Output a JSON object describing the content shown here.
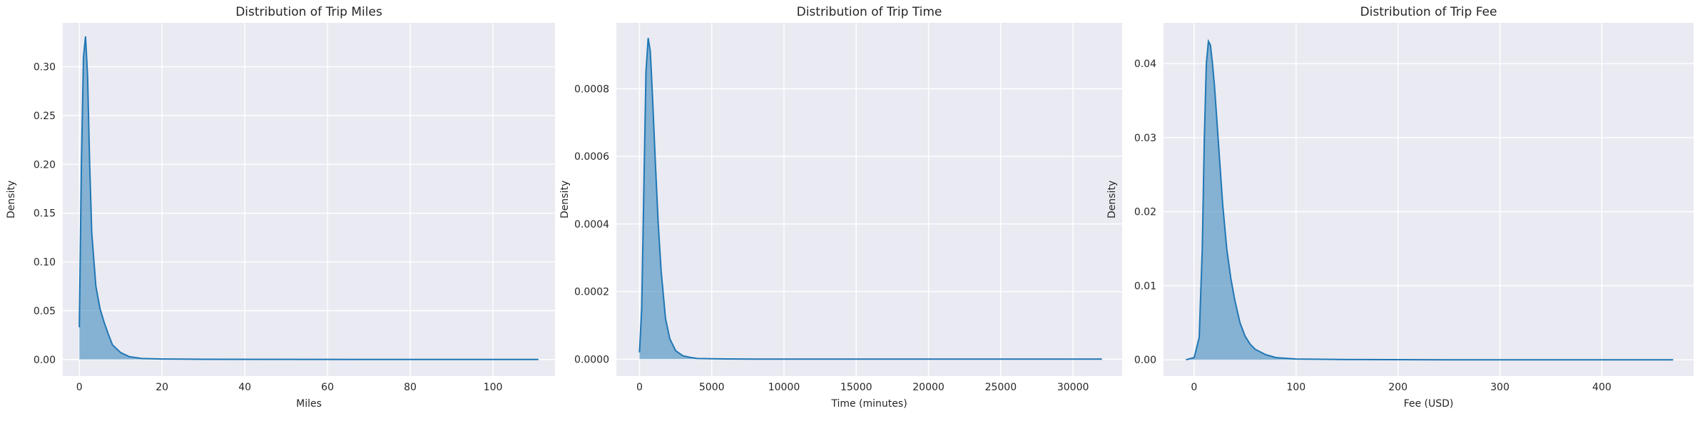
{
  "chart_data": [
    {
      "type": "area",
      "title": "Distribution of Trip Miles",
      "xlabel": "Miles",
      "ylabel": "Density",
      "xlim": [
        -4,
        115
      ],
      "ylim": [
        -0.017,
        0.345
      ],
      "xticks": [
        0,
        20,
        40,
        60,
        80,
        100
      ],
      "yticks": [
        0.0,
        0.05,
        0.1,
        0.15,
        0.2,
        0.25,
        0.3
      ],
      "ytick_labels": [
        "0.00",
        "0.05",
        "0.10",
        "0.15",
        "0.20",
        "0.25",
        "0.30"
      ],
      "xtick_labels": [
        "0",
        "20",
        "40",
        "60",
        "80",
        "100"
      ],
      "grid": true,
      "series": [
        {
          "x": [
            0,
            0.5,
            1,
            1.5,
            2,
            2.5,
            3,
            4,
            5,
            6,
            7,
            8,
            10,
            12,
            15,
            20,
            30,
            50,
            80,
            111
          ],
          "y": [
            0.033,
            0.2,
            0.31,
            0.331,
            0.29,
            0.2,
            0.13,
            0.075,
            0.052,
            0.038,
            0.026,
            0.015,
            0.007,
            0.003,
            0.001,
            0.0005,
            0.0002,
            0.0001,
            0.0,
            0.0
          ]
        }
      ]
    },
    {
      "type": "area",
      "title": "Distribution of Trip Time",
      "xlabel": "Time (minutes)",
      "ylabel": "Density",
      "xlim": [
        -1600,
        33400
      ],
      "ylim": [
        -5e-05,
        0.000995
      ],
      "xticks": [
        0,
        5000,
        10000,
        15000,
        20000,
        25000,
        30000
      ],
      "yticks": [
        0.0,
        0.0002,
        0.0004,
        0.0006,
        0.0008
      ],
      "ytick_labels": [
        "0.0000",
        "0.0002",
        "0.0004",
        "0.0006",
        "0.0008"
      ],
      "xtick_labels": [
        "0",
        "5000",
        "10000",
        "15000",
        "20000",
        "25000",
        "30000"
      ],
      "grid": true,
      "series": [
        {
          "x": [
            0,
            150,
            300,
            450,
            600,
            750,
            900,
            1100,
            1300,
            1500,
            1800,
            2100,
            2500,
            3000,
            3500,
            4000,
            5000,
            8000,
            15000,
            32000
          ],
          "y": [
            2e-05,
            0.00015,
            0.0005,
            0.00085,
            0.00095,
            0.00091,
            0.00078,
            0.00058,
            0.0004,
            0.00026,
            0.00012,
            6e-05,
            2.5e-05,
            1e-05,
            5e-06,
            2e-06,
            1e-06,
            0.0,
            0.0,
            0.0
          ]
        }
      ]
    },
    {
      "type": "area",
      "title": "Distribution of Trip Fee",
      "xlabel": "Fee (USD)",
      "ylabel": "Density",
      "xlim": [
        -30,
        490
      ],
      "ylim": [
        -0.0022,
        0.0455
      ],
      "xticks": [
        0,
        100,
        200,
        300,
        400
      ],
      "yticks": [
        0.0,
        0.01,
        0.02,
        0.03,
        0.04
      ],
      "ytick_labels": [
        "0.00",
        "0.01",
        "0.02",
        "0.03",
        "0.04"
      ],
      "xtick_labels": [
        "0",
        "100",
        "200",
        "300",
        "400"
      ],
      "grid": true,
      "series": [
        {
          "x": [
            -8,
            0,
            5,
            8,
            10,
            12,
            14,
            16,
            18,
            20,
            22,
            25,
            28,
            32,
            36,
            40,
            45,
            50,
            55,
            60,
            70,
            80,
            100,
            150,
            250,
            470
          ],
          "y": [
            0.0,
            0.0003,
            0.003,
            0.015,
            0.03,
            0.04,
            0.043,
            0.0425,
            0.04,
            0.037,
            0.033,
            0.027,
            0.021,
            0.015,
            0.011,
            0.008,
            0.005,
            0.0032,
            0.0021,
            0.0014,
            0.0007,
            0.0003,
            0.0001,
            3e-05,
            0.0,
            0.0
          ]
        }
      ]
    }
  ]
}
